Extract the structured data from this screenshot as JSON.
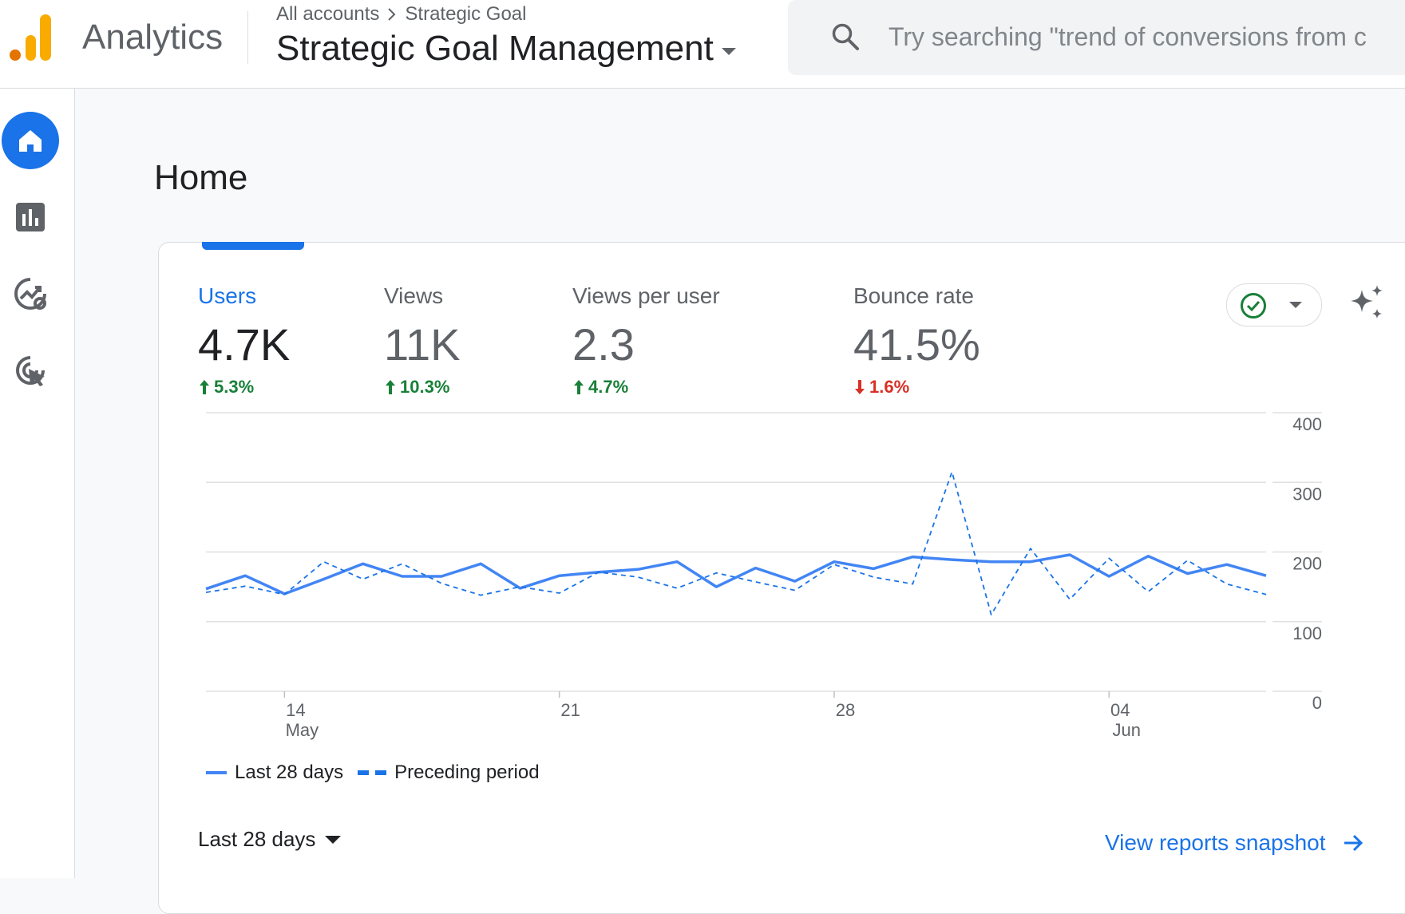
{
  "app": {
    "name": "Analytics",
    "logo": "analytics-logo"
  },
  "breadcrumb": {
    "account": "All accounts",
    "property": "Strategic Goal"
  },
  "header": {
    "property_name": "Strategic Goal Management"
  },
  "search": {
    "placeholder": "Try searching \"trend of conversions from c"
  },
  "nav": [
    {
      "icon": "home-icon",
      "active": true
    },
    {
      "icon": "reports-icon",
      "active": false
    },
    {
      "icon": "explore-icon",
      "active": false
    },
    {
      "icon": "advertising-icon",
      "active": false
    }
  ],
  "page": {
    "title": "Home"
  },
  "metrics": [
    {
      "label": "Users",
      "value": "4.7K",
      "change": "5.3%",
      "direction": "up",
      "selected": true
    },
    {
      "label": "Views",
      "value": "11K",
      "change": "10.3%",
      "direction": "up",
      "selected": false
    },
    {
      "label": "Views per user",
      "value": "2.3",
      "change": "4.7%",
      "direction": "up",
      "selected": false
    },
    {
      "label": "Bounce rate",
      "value": "41.5%",
      "change": "1.6%",
      "direction": "down",
      "selected": false
    }
  ],
  "colors": {
    "accent": "#1a73e8",
    "line": "#4285f4",
    "up": "#188038",
    "down": "#d93025"
  },
  "chart_data": {
    "type": "line",
    "y_ticks": [
      "400",
      "300",
      "200",
      "100",
      "0"
    ],
    "ylim": [
      0,
      400
    ],
    "x_ticks": [
      {
        "day": "14",
        "month": "May",
        "index": 2
      },
      {
        "day": "21",
        "month": "",
        "index": 9
      },
      {
        "day": "28",
        "month": "",
        "index": 16
      },
      {
        "day": "04",
        "month": "Jun",
        "index": 23
      }
    ],
    "series": [
      {
        "name": "Last 28 days",
        "style": "solid",
        "values": [
          147,
          166,
          140,
          161,
          183,
          165,
          165,
          183,
          148,
          166,
          171,
          175,
          186,
          150,
          177,
          158,
          186,
          176,
          193,
          189,
          186,
          186,
          196,
          165,
          194,
          169,
          182,
          166
        ]
      },
      {
        "name": "Preceding period",
        "style": "dashed",
        "values": [
          142,
          151,
          139,
          186,
          161,
          183,
          155,
          138,
          150,
          141,
          171,
          164,
          148,
          170,
          157,
          145,
          182,
          164,
          154,
          315,
          110,
          205,
          132,
          191,
          143,
          188,
          154,
          139
        ]
      }
    ]
  },
  "footer": {
    "range_label": "Last 28 days",
    "link_label": "View reports snapshot"
  }
}
